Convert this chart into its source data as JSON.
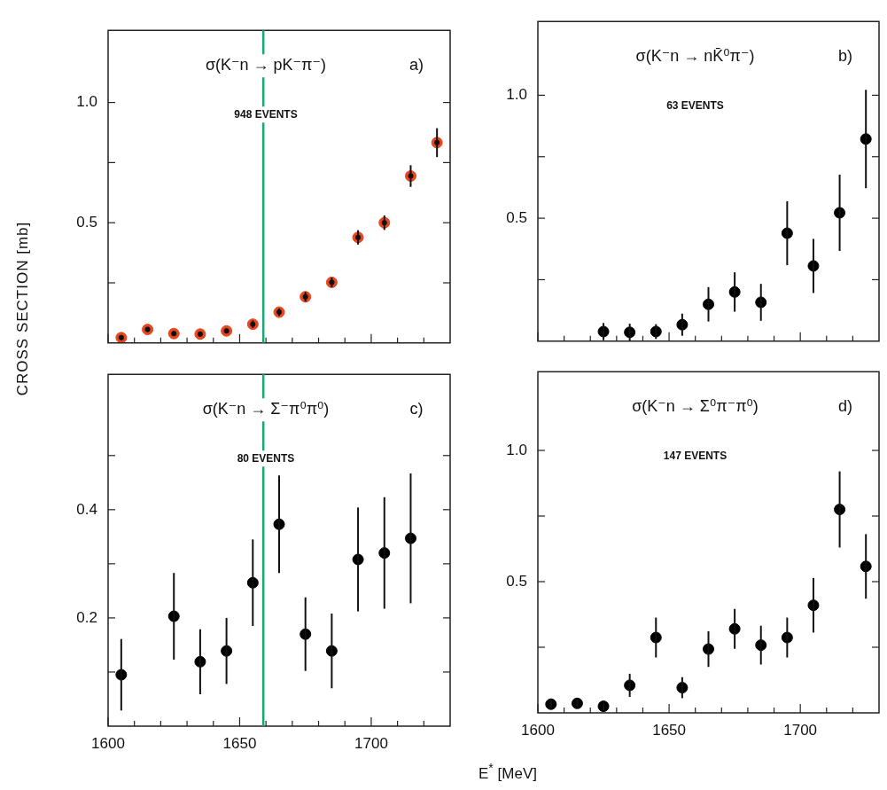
{
  "chart_data": [
    {
      "type": "scatter",
      "title": "σ(K⁻n → pK⁻π⁻)",
      "subtitle": "948 EVENTS",
      "annotations": [
        "a)"
      ],
      "ylabel": "CROSS SECTION [mb]",
      "xlim": [
        1600,
        1730
      ],
      "xticks": [
        1600,
        {
          "value": 1610,
          "label": null
        },
        {
          "value": 1620,
          "label": null
        },
        {
          "value": 1630,
          "label": null
        },
        {
          "value": 1640,
          "label": null
        },
        1650,
        {
          "value": 1660,
          "label": null
        },
        {
          "value": 1670,
          "label": null
        },
        {
          "value": 1680,
          "label": null
        },
        {
          "value": 1690,
          "label": null
        },
        1700,
        {
          "value": 1710,
          "label": null
        },
        {
          "value": 1720,
          "label": null
        }
      ],
      "ylim": [
        0,
        1.3
      ],
      "yticks": [
        {
          "value": 0.25,
          "label": null
        },
        0.5,
        {
          "value": 0.75,
          "label": null
        },
        {
          "value": 1,
          "label": "1.0"
        }
      ],
      "tick_labels": "y",
      "marker": "circle",
      "ref_lines": [
        {
          "axis": "x",
          "value": 1659,
          "color": "#1aa86e"
        }
      ],
      "series": [
        {
          "color": "#e8461e",
          "x": [
            1605,
            1615,
            1625,
            1635,
            1645,
            1655,
            1665,
            1675,
            1685,
            1695,
            1705,
            1715,
            1725
          ],
          "values": [
            0.022,
            0.056,
            0.039,
            0.037,
            0.05,
            0.078,
            0.128,
            0.192,
            0.252,
            0.439,
            0.5,
            0.694,
            0.833
          ],
          "errors": [
            0.01,
            0.01,
            0.01,
            0.01,
            0.01,
            0.015,
            0.015,
            0.02,
            0.02,
            0.03,
            0.03,
            0.045,
            0.06
          ]
        }
      ]
    },
    {
      "type": "scatter",
      "title": "σ(K⁻n → nK̄⁰π⁻)",
      "subtitle": "63 EVENTS",
      "annotations": [
        "b)"
      ],
      "xlim": [
        1600,
        1730
      ],
      "xticks": [
        1600,
        {
          "value": 1610,
          "label": null
        },
        {
          "value": 1620,
          "label": null
        },
        {
          "value": 1630,
          "label": null
        },
        {
          "value": 1640,
          "label": null
        },
        1650,
        {
          "value": 1660,
          "label": null
        },
        {
          "value": 1670,
          "label": null
        },
        {
          "value": 1680,
          "label": null
        },
        {
          "value": 1690,
          "label": null
        },
        1700,
        {
          "value": 1710,
          "label": null
        },
        {
          "value": 1720,
          "label": null
        }
      ],
      "ylim": [
        0,
        1.3
      ],
      "yticks": [
        {
          "value": 0.25,
          "label": null
        },
        0.5,
        {
          "value": 0.75,
          "label": null
        },
        {
          "value": 1,
          "label": "1.0"
        }
      ],
      "tick_labels": "y",
      "marker": "circle",
      "series": [
        {
          "color": "#000000",
          "x": [
            1625,
            1635,
            1645,
            1655,
            1665,
            1675,
            1685,
            1695,
            1705,
            1715,
            1725
          ],
          "values": [
            0.039,
            0.036,
            0.039,
            0.067,
            0.15,
            0.2,
            0.158,
            0.439,
            0.306,
            0.522,
            0.822
          ],
          "errors": [
            0.035,
            0.035,
            0.03,
            0.045,
            0.07,
            0.08,
            0.075,
            0.13,
            0.11,
            0.155,
            0.2
          ]
        }
      ]
    },
    {
      "type": "scatter",
      "title": "σ(K⁻n → Σ⁻π⁰π⁰)",
      "subtitle": "80 EVENTS",
      "annotations": [
        "c)"
      ],
      "xlabel": "E$^{*}$ [MeV]",
      "xlim": [
        1600,
        1730
      ],
      "xticks": [
        1600,
        {
          "value": 1610,
          "label": null
        },
        {
          "value": 1620,
          "label": null
        },
        {
          "value": 1630,
          "label": null
        },
        {
          "value": 1640,
          "label": null
        },
        1650,
        {
          "value": 1660,
          "label": null
        },
        {
          "value": 1670,
          "label": null
        },
        {
          "value": 1680,
          "label": null
        },
        {
          "value": 1690,
          "label": null
        },
        1700,
        {
          "value": 1710,
          "label": null
        },
        {
          "value": 1720,
          "label": null
        }
      ],
      "ylim": [
        0,
        0.65
      ],
      "yticks": [
        {
          "value": 0.1,
          "label": null
        },
        0.2,
        {
          "value": 0.3,
          "label": null
        },
        0.4,
        {
          "value": 0.5,
          "label": null
        }
      ],
      "marker": "circle",
      "ref_lines": [
        {
          "axis": "x",
          "value": 1659,
          "color": "#1aa86e"
        }
      ],
      "series": [
        {
          "color": "#000000",
          "x": [
            1605,
            1625,
            1635,
            1645,
            1655,
            1665,
            1675,
            1685,
            1695,
            1705,
            1715
          ],
          "values": [
            0.095,
            0.203,
            0.119,
            0.139,
            0.265,
            0.373,
            0.17,
            0.139,
            0.308,
            0.32,
            0.347
          ],
          "errors": [
            0.066,
            0.08,
            0.06,
            0.061,
            0.08,
            0.09,
            0.068,
            0.069,
            0.096,
            0.103,
            0.12
          ]
        }
      ]
    },
    {
      "type": "scatter",
      "title": "σ(K⁻n → Σ⁰π⁻π⁰)",
      "subtitle": "147 EVENTS",
      "annotations": [
        "d)"
      ],
      "xlim": [
        1600,
        1730
      ],
      "xticks": [
        1600,
        {
          "value": 1610,
          "label": null
        },
        {
          "value": 1620,
          "label": null
        },
        {
          "value": 1630,
          "label": null
        },
        {
          "value": 1640,
          "label": null
        },
        1650,
        {
          "value": 1660,
          "label": null
        },
        {
          "value": 1670,
          "label": null
        },
        {
          "value": 1680,
          "label": null
        },
        {
          "value": 1690,
          "label": null
        },
        1700,
        {
          "value": 1710,
          "label": null
        },
        {
          "value": 1720,
          "label": null
        }
      ],
      "ylim": [
        0,
        1.3
      ],
      "yticks": [
        {
          "value": 0.25,
          "label": null
        },
        0.5,
        {
          "value": 0.75,
          "label": null
        },
        {
          "value": 1,
          "label": "1.0"
        }
      ],
      "marker": "circle",
      "series": [
        {
          "color": "#000000",
          "x": [
            1605,
            1615,
            1625,
            1635,
            1645,
            1655,
            1665,
            1675,
            1685,
            1695,
            1705,
            1715,
            1725
          ],
          "values": [
            0.033,
            0.036,
            0.025,
            0.105,
            0.287,
            0.096,
            0.243,
            0.32,
            0.258,
            0.287,
            0.41,
            0.775,
            0.558
          ],
          "errors": [
            0.015,
            0.015,
            0.015,
            0.044,
            0.076,
            0.04,
            0.068,
            0.076,
            0.074,
            0.076,
            0.104,
            0.145,
            0.123
          ]
        }
      ]
    }
  ]
}
